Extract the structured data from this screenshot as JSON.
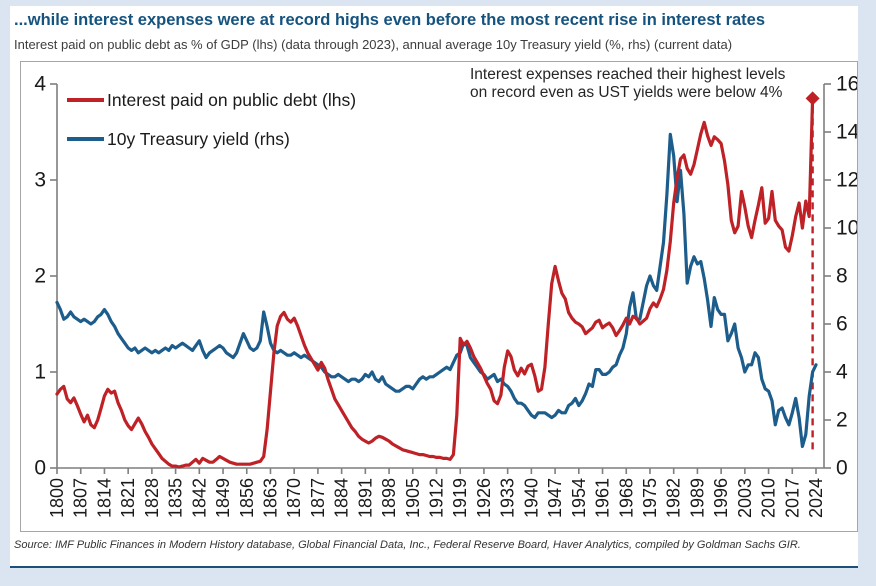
{
  "header": {
    "title": "...while interest expenses were at record highs even before the most recent rise in interest rates",
    "subtitle": "Interest paid on public debt as % of GDP (lhs) (data through 2023), annual average 10y Treasury yield (%, rhs) (current data)"
  },
  "annotation": {
    "line1": "Interest expenses reached their highest levels",
    "line2": "on record even as UST yields were below 4%"
  },
  "footer": {
    "source": "Source: IMF Public Finances in Modern History database, Global Financial Data, Inc., Federal Reserve Board, Haver Analytics, compiled by Goldman Sachs GIR."
  },
  "colors": {
    "page_background": "#dbe4f1",
    "title_navy": "#15537f",
    "rule_navy": "#1f4e79",
    "red_series": "#be2126",
    "blue_series": "#1d5d8c",
    "axis_gray": "#7f7f7f",
    "panel_border": "#a6a6a6",
    "tick_label": "#1a1a1a",
    "annotation_text": "#262626"
  },
  "chart_data": {
    "type": "line",
    "title": "...while interest expenses were at record highs even before the most recent rise in interest rates",
    "x_start": 1800,
    "x_end": 2024,
    "x_ticks": [
      1800,
      1807,
      1814,
      1821,
      1828,
      1835,
      1842,
      1849,
      1856,
      1863,
      1870,
      1877,
      1884,
      1891,
      1898,
      1905,
      1912,
      1919,
      1926,
      1933,
      1940,
      1947,
      1954,
      1961,
      1968,
      1975,
      1982,
      1989,
      1996,
      2003,
      2010,
      2017,
      2024
    ],
    "left_axis": {
      "label": "Interest paid on public debt (% of GDP)",
      "min": 0,
      "max": 4,
      "ticks": [
        0,
        1,
        2,
        3,
        4
      ]
    },
    "right_axis": {
      "label": "10y Treasury yield (%)",
      "min": 0,
      "max": 16,
      "ticks": [
        0,
        2,
        4,
        6,
        8,
        10,
        12,
        14,
        16
      ]
    },
    "grid": false,
    "legend_position": "top-left",
    "series": [
      {
        "name": "Interest paid on public debt (lhs)",
        "axis": "left",
        "color": "#be2126",
        "year_start": 1800,
        "values": [
          0.77,
          0.82,
          0.85,
          0.72,
          0.68,
          0.73,
          0.65,
          0.56,
          0.48,
          0.55,
          0.45,
          0.42,
          0.5,
          0.62,
          0.75,
          0.82,
          0.78,
          0.8,
          0.68,
          0.6,
          0.5,
          0.44,
          0.4,
          0.46,
          0.52,
          0.46,
          0.38,
          0.32,
          0.25,
          0.2,
          0.15,
          0.1,
          0.07,
          0.04,
          0.02,
          0.02,
          0.01,
          0.02,
          0.03,
          0.03,
          0.06,
          0.09,
          0.05,
          0.1,
          0.08,
          0.06,
          0.06,
          0.09,
          0.12,
          0.1,
          0.08,
          0.06,
          0.05,
          0.04,
          0.04,
          0.04,
          0.04,
          0.04,
          0.05,
          0.06,
          0.07,
          0.12,
          0.4,
          0.8,
          1.2,
          1.48,
          1.58,
          1.62,
          1.55,
          1.52,
          1.56,
          1.48,
          1.38,
          1.28,
          1.2,
          1.14,
          1.08,
          1.02,
          1.1,
          1.04,
          0.92,
          0.82,
          0.72,
          0.66,
          0.6,
          0.54,
          0.48,
          0.42,
          0.38,
          0.33,
          0.3,
          0.28,
          0.26,
          0.28,
          0.31,
          0.33,
          0.32,
          0.3,
          0.28,
          0.25,
          0.23,
          0.21,
          0.19,
          0.18,
          0.17,
          0.16,
          0.15,
          0.14,
          0.14,
          0.13,
          0.12,
          0.12,
          0.11,
          0.11,
          0.1,
          0.1,
          0.09,
          0.14,
          0.55,
          1.35,
          1.28,
          1.32,
          1.25,
          1.16,
          1.1,
          1.04,
          0.96,
          0.88,
          0.82,
          0.7,
          0.67,
          0.76,
          1.05,
          1.22,
          1.16,
          1.02,
          0.96,
          1.04,
          0.98,
          1.06,
          1.08,
          0.96,
          0.8,
          0.82,
          1.05,
          1.5,
          1.92,
          2.1,
          1.95,
          1.82,
          1.76,
          1.62,
          1.56,
          1.52,
          1.5,
          1.47,
          1.4,
          1.43,
          1.46,
          1.52,
          1.54,
          1.46,
          1.49,
          1.51,
          1.46,
          1.38,
          1.43,
          1.49,
          1.56,
          1.5,
          1.58,
          1.56,
          1.5,
          1.53,
          1.56,
          1.66,
          1.72,
          1.68,
          1.76,
          1.86,
          2.06,
          2.36,
          2.76,
          3.02,
          3.22,
          3.26,
          3.12,
          3.06,
          3.16,
          3.32,
          3.48,
          3.6,
          3.46,
          3.36,
          3.45,
          3.42,
          3.38,
          3.2,
          2.95,
          2.58,
          2.45,
          2.52,
          2.88,
          2.72,
          2.52,
          2.4,
          2.58,
          2.74,
          2.92,
          2.55,
          2.6,
          2.88,
          2.58,
          2.52,
          2.48,
          2.3,
          2.26,
          2.42,
          2.62,
          2.76,
          2.5,
          2.78,
          2.62,
          3.85
        ]
      },
      {
        "name": "10y Treasury yield (rhs)",
        "axis": "right",
        "color": "#1d5d8c",
        "year_start": 1800,
        "values": [
          6.9,
          6.6,
          6.2,
          6.3,
          6.5,
          6.3,
          6.2,
          6.1,
          6.2,
          6.1,
          6.0,
          6.1,
          6.3,
          6.4,
          6.6,
          6.4,
          6.1,
          5.9,
          5.6,
          5.4,
          5.2,
          5.0,
          4.9,
          5.0,
          4.8,
          4.9,
          5.0,
          4.9,
          4.8,
          4.9,
          4.8,
          4.9,
          5.0,
          4.9,
          5.1,
          5.0,
          5.1,
          5.2,
          5.1,
          5.0,
          4.9,
          5.1,
          5.3,
          4.9,
          4.6,
          4.8,
          4.9,
          5.0,
          5.1,
          5.0,
          4.8,
          4.7,
          4.6,
          4.8,
          5.2,
          5.6,
          5.3,
          5.0,
          4.9,
          5.0,
          5.3,
          6.5,
          5.9,
          5.2,
          4.9,
          4.8,
          4.9,
          4.8,
          4.7,
          4.7,
          4.8,
          4.7,
          4.6,
          4.7,
          4.6,
          4.5,
          4.4,
          4.3,
          4.2,
          4.0,
          3.9,
          3.8,
          3.8,
          3.9,
          3.8,
          3.7,
          3.6,
          3.7,
          3.7,
          3.6,
          3.7,
          3.9,
          3.8,
          4.0,
          3.7,
          3.6,
          3.8,
          3.5,
          3.4,
          3.3,
          3.2,
          3.2,
          3.3,
          3.4,
          3.4,
          3.3,
          3.5,
          3.7,
          3.8,
          3.7,
          3.8,
          3.8,
          3.9,
          4.0,
          4.1,
          4.2,
          4.1,
          4.4,
          4.7,
          4.8,
          5.2,
          5.1,
          4.6,
          4.4,
          4.2,
          4.0,
          3.9,
          3.7,
          3.8,
          3.9,
          3.6,
          3.7,
          3.5,
          3.4,
          3.2,
          2.9,
          2.7,
          2.7,
          2.6,
          2.4,
          2.2,
          2.1,
          2.3,
          2.3,
          2.3,
          2.2,
          2.1,
          2.2,
          2.4,
          2.3,
          2.3,
          2.6,
          2.7,
          2.9,
          2.6,
          2.8,
          3.1,
          3.5,
          3.4,
          4.1,
          4.1,
          3.9,
          3.9,
          4.0,
          4.2,
          4.3,
          4.7,
          5.0,
          5.6,
          6.7,
          7.3,
          6.2,
          6.2,
          6.9,
          7.6,
          8.0,
          7.6,
          7.4,
          8.4,
          9.4,
          11.4,
          13.9,
          13.0,
          11.1,
          12.4,
          10.6,
          7.7,
          8.4,
          8.8,
          8.5,
          8.6,
          7.9,
          7.0,
          5.9,
          7.1,
          6.6,
          6.4,
          6.4,
          5.3,
          5.6,
          6.0,
          5.0,
          4.6,
          4.0,
          4.3,
          4.3,
          4.8,
          4.6,
          3.7,
          3.3,
          3.2,
          2.8,
          1.8,
          2.4,
          2.5,
          2.1,
          1.8,
          2.3,
          2.9,
          2.1,
          0.9,
          1.4,
          3.0,
          4.0,
          4.3
        ]
      }
    ],
    "marker": {
      "shape": "diamond",
      "year": 2023,
      "value": 3.85,
      "axis": "left",
      "color": "#be2126"
    },
    "dashed_vertical_line": {
      "year": 2023,
      "color": "#be2126",
      "style": "dashed"
    }
  }
}
